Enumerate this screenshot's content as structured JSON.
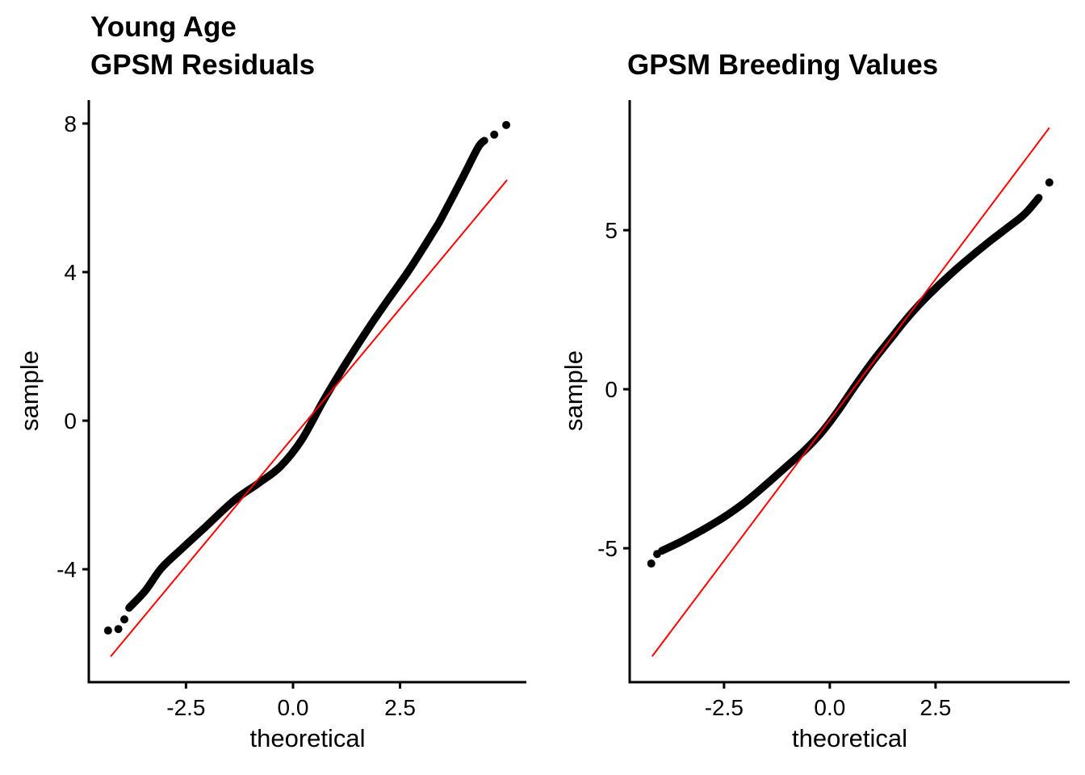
{
  "figure": {
    "background": "#FFFFFF",
    "text_color": "#000000",
    "axis_color": "#000000",
    "point_color": "#000000",
    "ref_line_color": "#FF0000"
  },
  "chart_data": [
    {
      "type": "scatter",
      "subtype": "qq_plot",
      "title_lines": [
        "Young Age",
        "GPSM Residuals"
      ],
      "xlabel": "theoretical",
      "ylabel": "sample",
      "xlim": [
        -4.77,
        5.45
      ],
      "ylim": [
        -7.04,
        8.63
      ],
      "x_ticks": [
        {
          "value": -2.5,
          "label": "-2.5"
        },
        {
          "value": 0,
          "label": "0.0"
        },
        {
          "value": 2.5,
          "label": "2.5"
        }
      ],
      "y_ticks": [
        {
          "value": 8,
          "label": "8"
        },
        {
          "value": 4,
          "label": "4"
        },
        {
          "value": 0,
          "label": "0"
        },
        {
          "value": -4,
          "label": "-4"
        }
      ],
      "ref_line": {
        "x1": -4.26,
        "y1": -6.35,
        "x2": 5.0,
        "y2": 6.48
      },
      "curve_points": [
        [
          -3.83,
          -5.04
        ],
        [
          -3.45,
          -4.58
        ],
        [
          -3.08,
          -3.98
        ],
        [
          -2.6,
          -3.45
        ],
        [
          -2.1,
          -2.92
        ],
        [
          -1.38,
          -2.15
        ],
        [
          -0.8,
          -1.68
        ],
        [
          -0.3,
          -1.24
        ],
        [
          0.2,
          -0.52
        ],
        [
          0.7,
          0.52
        ],
        [
          1.2,
          1.48
        ],
        [
          1.77,
          2.5
        ],
        [
          2.2,
          3.22
        ],
        [
          2.72,
          4.07
        ],
        [
          3.28,
          5.09
        ],
        [
          3.47,
          5.46
        ],
        [
          3.96,
          6.54
        ],
        [
          4.32,
          7.35
        ],
        [
          4.47,
          7.54
        ]
      ],
      "tail_points": [
        [
          -4.32,
          -5.65
        ],
        [
          -4.08,
          -5.61
        ],
        [
          -3.94,
          -5.35
        ],
        [
          4.7,
          7.7
        ],
        [
          4.98,
          7.96
        ]
      ]
    },
    {
      "type": "scatter",
      "subtype": "qq_plot",
      "title_lines": [
        "GPSM Breeding Values"
      ],
      "xlabel": "theoretical",
      "ylabel": "sample",
      "xlim": [
        -4.73,
        5.67
      ],
      "ylim": [
        -9.21,
        9.09
      ],
      "x_ticks": [
        {
          "value": -2.5,
          "label": "-2.5"
        },
        {
          "value": 0,
          "label": "0.0"
        },
        {
          "value": 2.5,
          "label": "2.5"
        }
      ],
      "y_ticks": [
        {
          "value": 5,
          "label": "5"
        },
        {
          "value": 0,
          "label": "0"
        },
        {
          "value": -5,
          "label": "-5"
        }
      ],
      "ref_line": {
        "x1": -4.2,
        "y1": -8.4,
        "x2": 5.19,
        "y2": 8.22
      },
      "curve_points": [
        [
          -3.97,
          -5.08
        ],
        [
          -3.5,
          -4.78
        ],
        [
          -3.0,
          -4.42
        ],
        [
          -2.5,
          -4.02
        ],
        [
          -2.0,
          -3.55
        ],
        [
          -1.5,
          -2.99
        ],
        [
          -1.0,
          -2.4
        ],
        [
          -0.6,
          -1.93
        ],
        [
          -0.2,
          -1.37
        ],
        [
          0.2,
          -0.67
        ],
        [
          0.6,
          0.11
        ],
        [
          1.0,
          0.85
        ],
        [
          1.4,
          1.52
        ],
        [
          1.8,
          2.19
        ],
        [
          2.2,
          2.78
        ],
        [
          2.6,
          3.3
        ],
        [
          3.0,
          3.79
        ],
        [
          3.4,
          4.24
        ],
        [
          3.8,
          4.67
        ],
        [
          4.2,
          5.08
        ],
        [
          4.6,
          5.5
        ],
        [
          4.94,
          6.02
        ]
      ],
      "tail_points": [
        [
          -4.22,
          -5.48
        ],
        [
          -4.08,
          -5.18
        ],
        [
          5.19,
          6.5
        ]
      ]
    }
  ]
}
